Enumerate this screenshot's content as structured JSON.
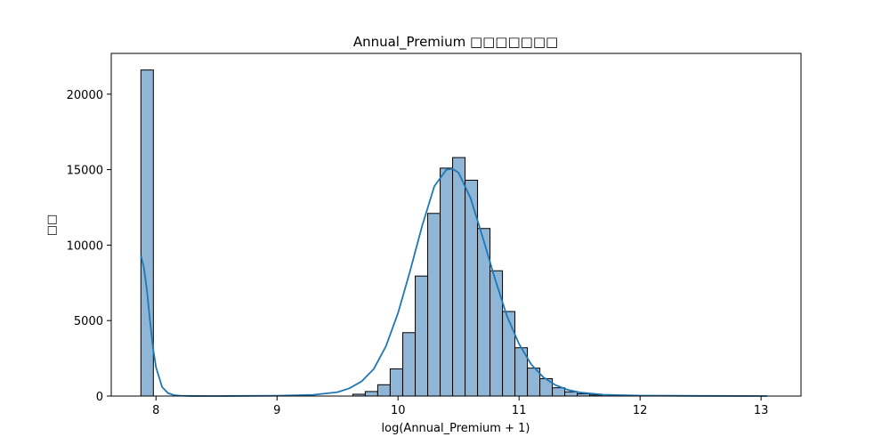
{
  "chart_data": {
    "type": "bar",
    "title": "Annual_Premium □□□□□□□",
    "xlabel": "log(Annual_Premium + 1)",
    "ylabel": "□□",
    "xlim": [
      7.63,
      13.33
    ],
    "ylim": [
      0,
      22700
    ],
    "x_ticks": [
      8,
      9,
      10,
      11,
      12,
      13
    ],
    "y_ticks": [
      0,
      5000,
      10000,
      15000,
      20000
    ],
    "bin_width": 0.1031,
    "bar_color": "#8fb6d6",
    "bar_edge_color": "#000000",
    "kde_color": "#1f77b4",
    "bins": [
      {
        "x0": 7.875,
        "count": 21600
      },
      {
        "x0": 9.626,
        "count": 120
      },
      {
        "x0": 9.729,
        "count": 300
      },
      {
        "x0": 9.832,
        "count": 750
      },
      {
        "x0": 9.935,
        "count": 1800
      },
      {
        "x0": 10.039,
        "count": 4200
      },
      {
        "x0": 10.142,
        "count": 7950
      },
      {
        "x0": 10.245,
        "count": 12100
      },
      {
        "x0": 10.348,
        "count": 15100
      },
      {
        "x0": 10.451,
        "count": 15800
      },
      {
        "x0": 10.554,
        "count": 14300
      },
      {
        "x0": 10.657,
        "count": 11100
      },
      {
        "x0": 10.76,
        "count": 8300
      },
      {
        "x0": 10.863,
        "count": 5600
      },
      {
        "x0": 10.966,
        "count": 3200
      },
      {
        "x0": 11.069,
        "count": 1850
      },
      {
        "x0": 11.172,
        "count": 1150
      },
      {
        "x0": 11.275,
        "count": 550
      },
      {
        "x0": 11.378,
        "count": 280
      },
      {
        "x0": 11.481,
        "count": 150
      },
      {
        "x0": 11.584,
        "count": 70
      }
    ],
    "kde": {
      "x": [
        7.875,
        7.9,
        7.925,
        7.95,
        7.975,
        8.0,
        8.05,
        8.1,
        8.15,
        8.2,
        8.3,
        8.5,
        9.0,
        9.3,
        9.5,
        9.6,
        9.7,
        9.8,
        9.9,
        10.0,
        10.1,
        10.2,
        10.3,
        10.4,
        10.45,
        10.5,
        10.6,
        10.7,
        10.8,
        10.9,
        11.0,
        11.1,
        11.2,
        11.3,
        11.4,
        11.5,
        11.7,
        12.0,
        12.5,
        13.05
      ],
      "y": [
        9300,
        8500,
        7000,
        5000,
        3200,
        1900,
        600,
        190,
        60,
        20,
        5,
        0,
        20,
        80,
        260,
        520,
        980,
        1800,
        3300,
        5500,
        8300,
        11300,
        13900,
        15000,
        15050,
        14800,
        13100,
        10500,
        7800,
        5300,
        3450,
        2100,
        1250,
        730,
        420,
        240,
        90,
        30,
        10,
        0
      ]
    }
  }
}
